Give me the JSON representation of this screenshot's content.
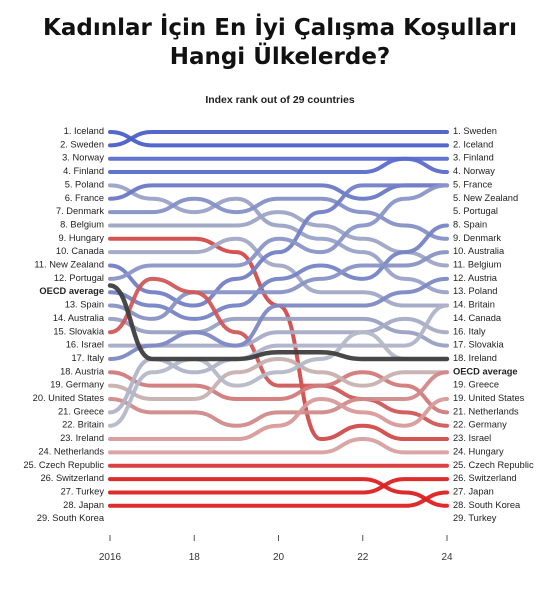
{
  "header": {
    "title_line1": "Kadınlar İçin En İyi Çalışma Koşulları",
    "title_line2": "Hangi Ülkelerde?"
  },
  "chart_data": {
    "type": "line",
    "subtitle": "Index rank out of 29 countries",
    "x": [
      2016,
      2017,
      2018,
      2019,
      2020,
      2021,
      2022,
      2023,
      2024
    ],
    "x_tick_labels": [
      "2016",
      "18",
      "20",
      "22",
      "24"
    ],
    "x_ticks": [
      2016,
      2018,
      2020,
      2022,
      2024
    ],
    "y_axis": "rank, 1 at top, 29 at bottom",
    "ylim": [
      1,
      29
    ],
    "grid": false,
    "left_labels": [
      "1. Iceland",
      "2. Sweden",
      "3. Norway",
      "4. Finland",
      "5. Poland",
      "6. France",
      "7. Denmark",
      "8. Belgium",
      "9. Hungary",
      "10. Canada",
      "11. New Zealand",
      "12. Portugal",
      "OECD average",
      "13. Spain",
      "14. Australia",
      "15. Slovakia",
      "16. Israel",
      "17. Italy",
      "18. Austria",
      "19. Germany",
      "20. United States",
      "21. Greece",
      "22. Britain",
      "23. Ireland",
      "24. Netherlands",
      "25. Czech Republic",
      "26. Switzerland",
      "27. Turkey",
      "28. Japan",
      "29. South Korea"
    ],
    "right_labels": [
      "1. Sweden",
      "2. Iceland",
      "3. Finland",
      "4. Norway",
      "5. France",
      "5. New Zealand",
      "5. Portugal",
      "8. Spain",
      "9. Denmark",
      "10. Australia",
      "11. Belgium",
      "12. Austria",
      "13. Poland",
      "14. Britain",
      "14. Canada",
      "16. Italy",
      "17. Slovakia",
      "18. Ireland",
      "OECD average",
      "19. Greece",
      "19. United States",
      "21. Netherlands",
      "22. Germany",
      "23. Israel",
      "24. Hungary",
      "25. Czech Republic",
      "26. Switzerland",
      "27. Japan",
      "28. South Korea",
      "29. Turkey"
    ],
    "series": [
      {
        "name": "Iceland",
        "color": "#4b5fc8",
        "values": [
          1,
          2,
          2,
          2,
          2,
          2,
          2,
          2,
          2
        ]
      },
      {
        "name": "Sweden",
        "color": "#4b5fc8",
        "values": [
          2,
          1,
          1,
          1,
          1,
          1,
          1,
          1,
          1
        ]
      },
      {
        "name": "Norway",
        "color": "#5a6dcc",
        "values": [
          3,
          3,
          3,
          3,
          3,
          3,
          3,
          3,
          4
        ]
      },
      {
        "name": "Finland",
        "color": "#5a6dcc",
        "values": [
          4,
          4,
          4,
          4,
          4,
          4,
          4,
          3,
          3
        ]
      },
      {
        "name": "Poland",
        "color": "#9aa3c8",
        "values": [
          5,
          6,
          7,
          6,
          8,
          9,
          10,
          12,
          13
        ]
      },
      {
        "name": "France",
        "color": "#6a78c6",
        "values": [
          6,
          5,
          5,
          5,
          5,
          5,
          6,
          5,
          5
        ]
      },
      {
        "name": "Denmark",
        "color": "#8590c6",
        "values": [
          7,
          7,
          6,
          7,
          6,
          6,
          7,
          8,
          9
        ]
      },
      {
        "name": "Belgium",
        "color": "#9da5c4",
        "values": [
          8,
          8,
          8,
          8,
          7,
          8,
          9,
          10,
          11
        ]
      },
      {
        "name": "Hungary",
        "color": "#d24a4a",
        "values": [
          9,
          9,
          9,
          10,
          14,
          24,
          23,
          24,
          24
        ]
      },
      {
        "name": "Canada",
        "color": "#a2a8c6",
        "values": [
          10,
          10,
          10,
          9,
          11,
          13,
          13,
          14,
          14
        ]
      },
      {
        "name": "New Zealand",
        "color": "#7480c6",
        "values": [
          11,
          13,
          14,
          12,
          10,
          7,
          5,
          5,
          5
        ]
      },
      {
        "name": "Portugal",
        "color": "#8a95c8",
        "values": [
          12,
          11,
          11,
          11,
          9,
          10,
          8,
          6,
          5
        ]
      },
      {
        "name": "OECD average",
        "color": "#3e3e3e",
        "values": [
          12.5,
          18,
          18,
          18,
          17.5,
          17.5,
          18,
          18,
          18
        ]
      },
      {
        "name": "Spain",
        "color": "#7684c6",
        "values": [
          13,
          14,
          15,
          14,
          12,
          11,
          12,
          10,
          8
        ]
      },
      {
        "name": "Australia",
        "color": "#8993c4",
        "values": [
          14,
          15,
          13,
          13,
          13,
          12,
          11,
          11,
          10
        ]
      },
      {
        "name": "Slovakia",
        "color": "#9aa1c2",
        "values": [
          15,
          16,
          16,
          15,
          15,
          15,
          15,
          16,
          17
        ]
      },
      {
        "name": "Israel",
        "color": "#d05858",
        "values": [
          16,
          12,
          13,
          16,
          20,
          20,
          21,
          22,
          23
        ]
      },
      {
        "name": "Italy",
        "color": "#a6abc6",
        "values": [
          17,
          17,
          17,
          17,
          16,
          16,
          16,
          15,
          16
        ]
      },
      {
        "name": "Austria",
        "color": "#7e89c4",
        "values": [
          18,
          17,
          16,
          17,
          14,
          14,
          14,
          13,
          12
        ]
      },
      {
        "name": "Germany",
        "color": "#d27a7a",
        "values": [
          19,
          20,
          20,
          21,
          21,
          20,
          19,
          20,
          22
        ]
      },
      {
        "name": "United States",
        "color": "#c8b0b0",
        "values": [
          20,
          21,
          21,
          19,
          18,
          19,
          20,
          19,
          19
        ]
      },
      {
        "name": "Greece",
        "color": "#d08a8a",
        "values": [
          21,
          22,
          22,
          23,
          22,
          22,
          21,
          21,
          19
        ]
      },
      {
        "name": "Britain",
        "color": "#b0b3c8",
        "values": [
          22,
          18,
          19,
          18,
          17,
          17,
          17,
          17,
          14
        ]
      },
      {
        "name": "Ireland",
        "color": "#b4b8c8",
        "values": [
          23,
          19,
          18,
          20,
          19,
          18,
          16,
          18,
          18
        ]
      },
      {
        "name": "Netherlands",
        "color": "#d89a9a",
        "values": [
          24,
          24,
          24,
          24,
          23,
          21,
          22,
          23,
          21
        ]
      },
      {
        "name": "Czech Republic",
        "color": "#d8a0a0",
        "values": [
          25,
          25,
          25,
          25,
          25,
          25,
          24,
          25,
          25
        ]
      },
      {
        "name": "Switzerland",
        "color": "#d83838",
        "values": [
          26,
          26,
          26,
          26,
          26,
          26,
          26,
          26,
          26
        ]
      },
      {
        "name": "Turkey",
        "color": "#dc2020",
        "values": [
          27,
          27,
          27,
          27,
          27,
          27,
          27,
          28,
          29
        ]
      },
      {
        "name": "Japan",
        "color": "#dc2020",
        "values": [
          28,
          28,
          28,
          28,
          28,
          28,
          28,
          27,
          27
        ]
      },
      {
        "name": "South Korea",
        "color": "#dc2020",
        "values": [
          29,
          29,
          29,
          29,
          29,
          29,
          29,
          29,
          28
        ]
      }
    ]
  }
}
